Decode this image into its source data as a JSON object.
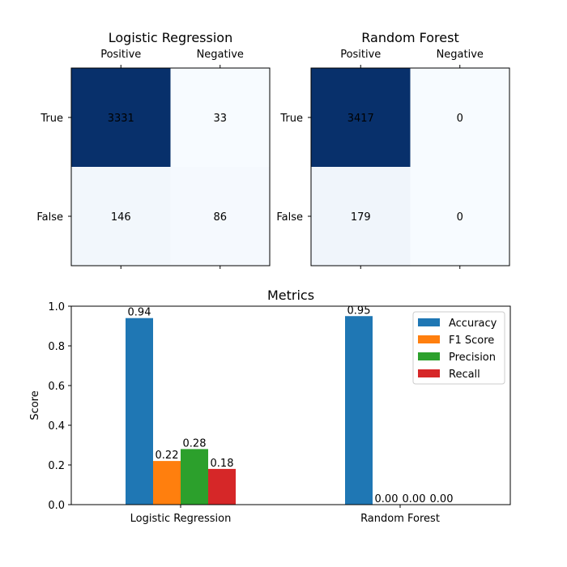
{
  "chart_data": [
    {
      "type": "heatmap",
      "title": "Logistic Regression",
      "x_categories": [
        "Positive",
        "Negative"
      ],
      "y_categories": [
        "True",
        "False"
      ],
      "values": [
        [
          3331,
          33
        ],
        [
          146,
          86
        ]
      ],
      "colormap": "Blues",
      "dark_color": "#08306b",
      "light_color": "#f7fbff",
      "x_ticks_position": "top"
    },
    {
      "type": "heatmap",
      "title": "Random Forest",
      "x_categories": [
        "Positive",
        "Negative"
      ],
      "y_categories": [
        "True",
        "False"
      ],
      "values": [
        [
          3417,
          0
        ],
        [
          179,
          0
        ]
      ],
      "colormap": "Blues",
      "dark_color": "#08306b",
      "light_color": "#f7fbff",
      "x_ticks_position": "top"
    },
    {
      "type": "bar",
      "title": "Metrics",
      "ylabel": "Score",
      "categories": [
        "Logistic Regression",
        "Random Forest"
      ],
      "ylim": [
        0,
        1.0
      ],
      "yticks": [
        "0.0",
        "0.2",
        "0.4",
        "0.6",
        "0.8",
        "1.0"
      ],
      "legend_position": "top-right",
      "series": [
        {
          "name": "Accuracy",
          "color": "#1f77b4",
          "values": [
            0.94,
            0.95
          ],
          "labels": [
            "0.94",
            "0.95"
          ]
        },
        {
          "name": "F1 Score",
          "color": "#ff7f0e",
          "values": [
            0.22,
            0.0
          ],
          "labels": [
            "0.22",
            "0.00"
          ]
        },
        {
          "name": "Precision",
          "color": "#2ca02c",
          "values": [
            0.28,
            0.0
          ],
          "labels": [
            "0.28",
            "0.00"
          ]
        },
        {
          "name": "Recall",
          "color": "#d62728",
          "values": [
            0.18,
            0.0
          ],
          "labels": [
            "0.18",
            "0.00"
          ]
        }
      ]
    }
  ]
}
